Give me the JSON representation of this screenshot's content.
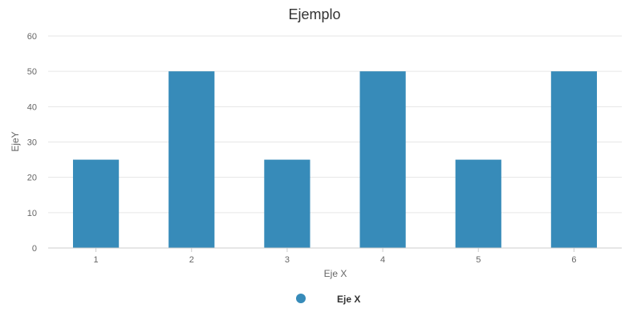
{
  "chart_data": {
    "type": "bar",
    "title": "Ejemplo",
    "xlabel": "Eje X",
    "ylabel": "EjeY",
    "categories": [
      "1",
      "2",
      "3",
      "4",
      "5",
      "6"
    ],
    "series": [
      {
        "name": "Eje X",
        "values": [
          25,
          50,
          25,
          50,
          25,
          50
        ],
        "color": "#378bb9"
      }
    ],
    "ylim": [
      0,
      60
    ],
    "yticks": [
      0,
      10,
      20,
      30,
      40,
      50,
      60
    ],
    "grid": true,
    "legend": "bottom-center"
  }
}
